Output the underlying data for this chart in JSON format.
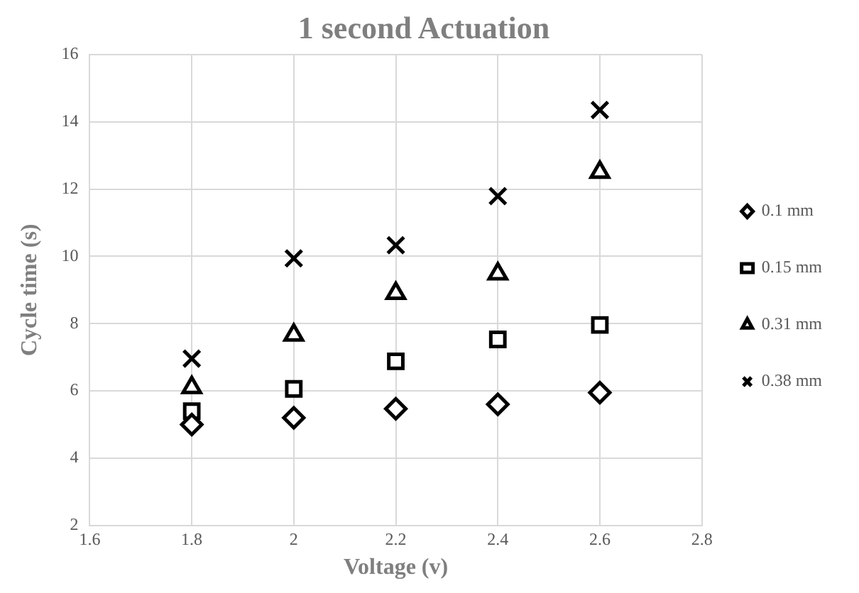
{
  "chart_data": {
    "type": "scatter",
    "title": "1 second Actuation",
    "xlabel": "Voltage (v)",
    "ylabel": "Cycle time (s)",
    "x": [
      1.8,
      2,
      2.2,
      2.4,
      2.6
    ],
    "series": [
      {
        "name": "0.1 mm",
        "color": "#000000",
        "marker": "diamond",
        "values": [
          5.0,
          5.2,
          5.47,
          5.6,
          5.95
        ]
      },
      {
        "name": "0.15 mm",
        "color": "#000000",
        "marker": "square",
        "values": [
          5.4,
          6.06,
          6.88,
          7.53,
          7.96
        ]
      },
      {
        "name": "0.31 mm",
        "color": "#000000",
        "marker": "triangle",
        "values": [
          6.1,
          7.66,
          8.9,
          9.48,
          12.5
        ]
      },
      {
        "name": "0.38 mm",
        "color": "#000000",
        "marker": "cross",
        "values": [
          6.96,
          9.94,
          10.33,
          11.79,
          14.35
        ]
      }
    ],
    "xlim": [
      1.6,
      2.8
    ],
    "xticks": [
      1.6,
      1.8,
      2,
      2.2,
      2.4,
      2.6,
      2.8
    ],
    "ylim": [
      2,
      16
    ],
    "yticks": [
      2,
      4,
      6,
      8,
      10,
      12,
      14,
      16
    ],
    "grid": true,
    "legend": "right"
  }
}
